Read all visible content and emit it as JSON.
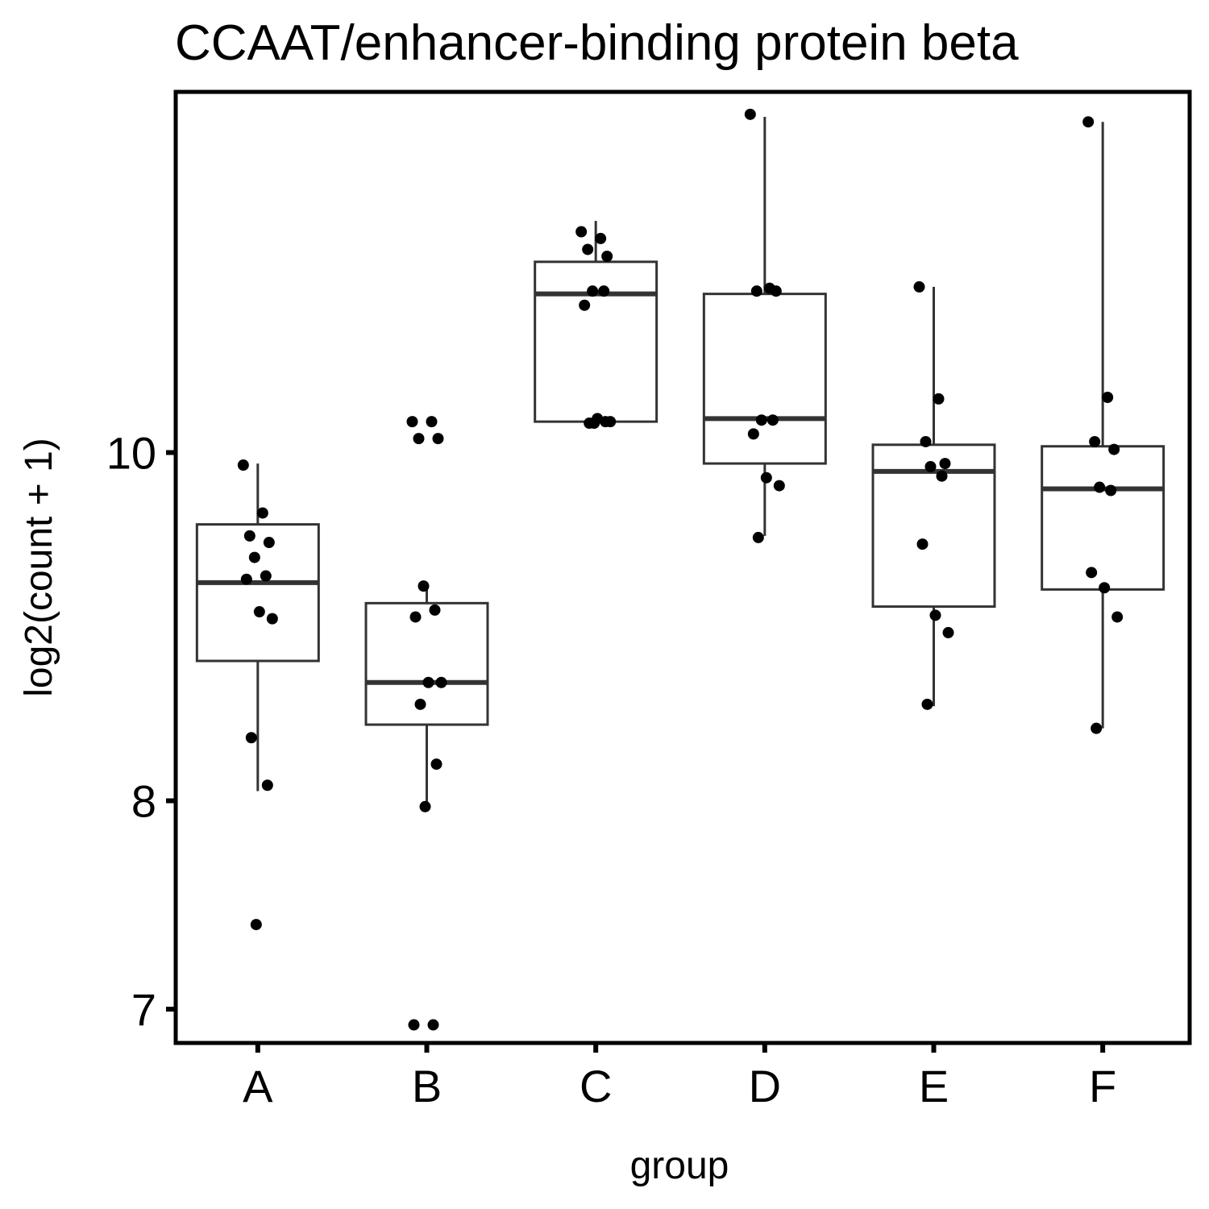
{
  "chart_data": {
    "type": "boxplot",
    "title": "CCAAT/enhancer-binding protein beta",
    "xlabel": "group",
    "ylabel": "log2(count + 1)",
    "y_scale": "log",
    "y_ticks": [
      7,
      8,
      10
    ],
    "ylim": [
      6.85,
      12.6
    ],
    "grid": false,
    "legend": "none",
    "colors": {
      "box_stroke": "#333333",
      "point": "#000000",
      "frame": "#000000"
    },
    "categories": [
      "A",
      "B",
      "C",
      "D",
      "E",
      "F"
    ],
    "groups": [
      {
        "name": "A",
        "box": {
          "lower_whisker": 8.05,
          "q1": 8.75,
          "median": 9.2,
          "q3": 9.55,
          "upper_whisker": 9.93
        },
        "points": [
          9.92,
          9.62,
          9.48,
          9.44,
          9.35,
          9.24,
          9.22,
          9.03,
          8.99,
          8.33,
          8.08,
          7.39
        ]
      },
      {
        "name": "B",
        "box": {
          "lower_whisker": 7.95,
          "q1": 8.4,
          "median": 8.63,
          "q3": 9.08,
          "upper_whisker": 9.19
        },
        "points": [
          10.2,
          10.2,
          10.09,
          10.09,
          9.18,
          9.04,
          9.0,
          8.63,
          8.63,
          8.51,
          8.19,
          7.97,
          6.93,
          6.93
        ]
      },
      {
        "name": "C",
        "box": {
          "lower_whisker": 10.2,
          "q1": 10.2,
          "median": 11.07,
          "q3": 11.3,
          "upper_whisker": 11.6
        },
        "points": [
          11.52,
          11.47,
          11.39,
          11.34,
          11.09,
          11.09,
          10.99,
          10.22,
          10.2,
          10.19,
          10.2,
          10.19
        ]
      },
      {
        "name": "D",
        "box": {
          "lower_whisker": 9.48,
          "q1": 9.93,
          "median": 10.22,
          "q3": 11.07,
          "upper_whisker": 12.4
        },
        "points": [
          12.42,
          11.11,
          11.09,
          11.09,
          10.21,
          10.21,
          10.12,
          9.84,
          9.79,
          9.47
        ]
      },
      {
        "name": "E",
        "box": {
          "lower_whisker": 8.5,
          "q1": 9.06,
          "median": 9.88,
          "q3": 10.05,
          "upper_whisker": 11.12
        },
        "points": [
          11.12,
          10.35,
          10.07,
          9.93,
          9.91,
          9.85,
          9.43,
          9.01,
          8.91,
          8.51
        ]
      },
      {
        "name": "F",
        "box": {
          "lower_whisker": 8.38,
          "q1": 9.16,
          "median": 9.77,
          "q3": 10.04,
          "upper_whisker": 12.36
        },
        "points": [
          12.36,
          10.36,
          10.07,
          10.02,
          9.78,
          9.76,
          9.26,
          9.17,
          9.0,
          8.38
        ]
      }
    ]
  }
}
